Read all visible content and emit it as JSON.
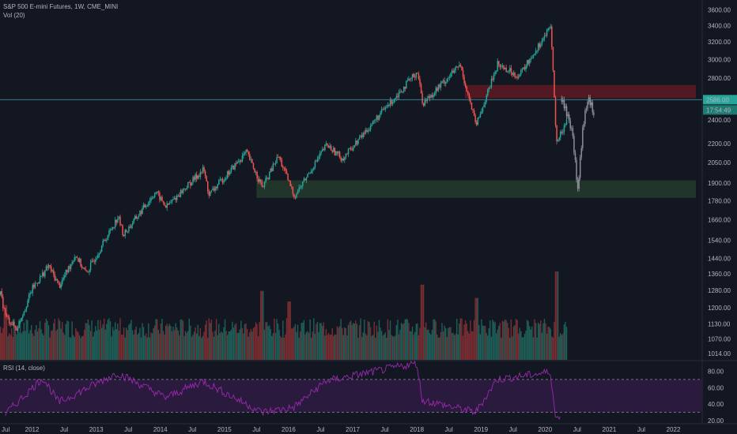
{
  "header": {
    "title": "S&P 500 E-mini Futures, 1W, CME_MINI",
    "volume_label": "Vol (20)",
    "rsi_label": "RSI (14, close)"
  },
  "colors": {
    "background": "#131722",
    "up": "#26a69a",
    "down": "#ef5350",
    "up_vol": "#1f5f58",
    "down_vol": "#7a2e32",
    "projection": "#8b8e96",
    "resistance_zone": "#5e1a22",
    "support_zone": "#243b2c",
    "rsi_line": "#9c27b0",
    "rsi_band": "#2a1a3d",
    "price_tag": "#26a69a",
    "axis_text": "#b2b5be"
  },
  "chart_data": {
    "type": "candlestick",
    "title": "S&P 500 E-mini Futures, 1W, CME_MINI",
    "timeframe": "1W",
    "y_scale": "log",
    "ylim": [
      990,
      3650
    ],
    "xlim": [
      "2011-07",
      "2022-06"
    ],
    "x_ticks": [
      "Jul",
      "2012",
      "Jul",
      "2013",
      "Jul",
      "2014",
      "Jul",
      "2015",
      "Jul",
      "2016",
      "Jul",
      "2017",
      "Jul",
      "2018",
      "Jul",
      "2019",
      "Jul",
      "2020",
      "Jul",
      "2021",
      "Jul",
      "2022"
    ],
    "y_ticks": [
      3600,
      3400,
      3200,
      3000,
      2800,
      2600,
      2400,
      2200,
      2050,
      1900,
      1780,
      1660,
      1540,
      1440,
      1360,
      1280,
      1200,
      1130,
      1070,
      1014
    ],
    "y_tick_labels": [
      "3600.00",
      "3400.00",
      "3200.00",
      "3000.00",
      "2800.00",
      "2600.00",
      "2400.00",
      "2200.00",
      "2050.00",
      "1900.00",
      "1780.00",
      "1660.00",
      "1540.00",
      "1440.00",
      "1360.00",
      "1280.00",
      "1200.00",
      "1130.00",
      "1070.00",
      "1014.00"
    ],
    "price_path": [
      {
        "date": "2011-07",
        "close": 1260
      },
      {
        "date": "2011-08",
        "close": 1160
      },
      {
        "date": "2011-10",
        "close": 1110
      },
      {
        "date": "2012-01",
        "close": 1290
      },
      {
        "date": "2012-04",
        "close": 1400
      },
      {
        "date": "2012-06",
        "close": 1300
      },
      {
        "date": "2012-09",
        "close": 1460
      },
      {
        "date": "2012-11",
        "close": 1360
      },
      {
        "date": "2013-05",
        "close": 1680
      },
      {
        "date": "2013-06",
        "close": 1570
      },
      {
        "date": "2013-12",
        "close": 1840
      },
      {
        "date": "2014-02",
        "close": 1740
      },
      {
        "date": "2014-09",
        "close": 2000
      },
      {
        "date": "2014-10",
        "close": 1820
      },
      {
        "date": "2015-05",
        "close": 2130
      },
      {
        "date": "2015-08",
        "close": 1870
      },
      {
        "date": "2015-11",
        "close": 2100
      },
      {
        "date": "2016-02",
        "close": 1810
      },
      {
        "date": "2016-08",
        "close": 2190
      },
      {
        "date": "2016-11",
        "close": 2080
      },
      {
        "date": "2017-06",
        "close": 2450
      },
      {
        "date": "2018-01",
        "close": 2870
      },
      {
        "date": "2018-02",
        "close": 2550
      },
      {
        "date": "2018-09",
        "close": 2940
      },
      {
        "date": "2018-12",
        "close": 2350
      },
      {
        "date": "2019-04",
        "close": 2950
      },
      {
        "date": "2019-08",
        "close": 2820
      },
      {
        "date": "2020-02",
        "close": 3390
      },
      {
        "date": "2020-03",
        "close": 2200
      },
      {
        "date": "2020-05",
        "close": 2400
      }
    ],
    "projection_path": [
      {
        "date": "2020-04",
        "close": 2600
      },
      {
        "date": "2020-05",
        "close": 2450
      },
      {
        "date": "2020-06",
        "close": 2300
      },
      {
        "date": "2020-07",
        "close": 1850
      },
      {
        "date": "2020-08",
        "close": 2350
      },
      {
        "date": "2020-09",
        "close": 2620
      },
      {
        "date": "2020-10",
        "close": 2450
      }
    ],
    "zones": [
      {
        "kind": "resistance",
        "from": "2018-10",
        "to": "2022-06",
        "low": 2600,
        "high": 2730
      },
      {
        "kind": "support",
        "from": "2015-07",
        "to": "2022-06",
        "low": 1800,
        "high": 1920
      }
    ],
    "horizontal_line": 2586.0,
    "last_price_label": "2586.00",
    "countdown_label": "17:54:49",
    "volume": {
      "name": "Vol (20)",
      "spikes": [
        {
          "date": "2011-08",
          "level": 0.62
        },
        {
          "date": "2015-08",
          "level": 0.78
        },
        {
          "date": "2016-01",
          "level": 0.66
        },
        {
          "date": "2018-02",
          "level": 0.85
        },
        {
          "date": "2018-12",
          "level": 0.7
        },
        {
          "date": "2020-03",
          "level": 1.0
        }
      ],
      "baseline_level": 0.45
    },
    "rsi": {
      "name": "RSI (14, close)",
      "ylim": [
        18,
        92
      ],
      "y_ticks": [
        80,
        60,
        40,
        20
      ],
      "y_tick_labels": [
        "80.00",
        "60.00",
        "40.00",
        "20.00"
      ],
      "bands": [
        70,
        30
      ],
      "path": [
        {
          "date": "2011-08",
          "value": 28
        },
        {
          "date": "2012-03",
          "value": 72
        },
        {
          "date": "2012-06",
          "value": 42
        },
        {
          "date": "2013-05",
          "value": 78
        },
        {
          "date": "2014-02",
          "value": 48
        },
        {
          "date": "2014-09",
          "value": 68
        },
        {
          "date": "2015-08",
          "value": 30
        },
        {
          "date": "2016-02",
          "value": 36
        },
        {
          "date": "2016-08",
          "value": 68
        },
        {
          "date": "2018-01",
          "value": 90
        },
        {
          "date": "2018-02",
          "value": 45
        },
        {
          "date": "2018-12",
          "value": 30
        },
        {
          "date": "2019-04",
          "value": 70
        },
        {
          "date": "2020-02",
          "value": 79
        },
        {
          "date": "2020-03",
          "value": 20
        },
        {
          "date": "2020-04",
          "value": 30
        }
      ]
    }
  }
}
